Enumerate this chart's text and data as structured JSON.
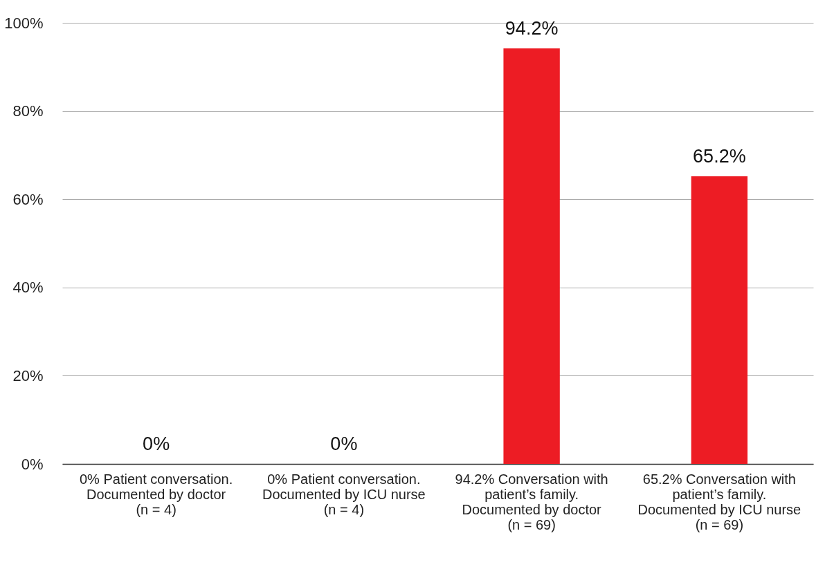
{
  "chart_data": {
    "type": "bar",
    "categories": [
      "0% Patient conversation. Documented by doctor (n = 4)",
      "0% Patient conversation. Documented by ICU nurse (n = 4)",
      "94.2% Conversation with patient’s family. Documented by doctor (n = 69)",
      "65.2% Conversation with patient’s family. Documented by ICU nurse (n = 69)"
    ],
    "values": [
      0,
      0,
      94.2,
      65.2
    ],
    "value_labels": [
      "0%",
      "0%",
      "94.2%",
      "65.2%"
    ],
    "color": "#ed1c24",
    "ylim": [
      0,
      100
    ],
    "yticks": [
      {
        "value": 0,
        "label": "0%"
      },
      {
        "value": 20,
        "label": "20%"
      },
      {
        "value": 40,
        "label": "40%"
      },
      {
        "value": 60,
        "label": "60%"
      },
      {
        "value": 80,
        "label": "80%"
      },
      {
        "value": 100,
        "label": "100%"
      }
    ],
    "grid": "y"
  }
}
